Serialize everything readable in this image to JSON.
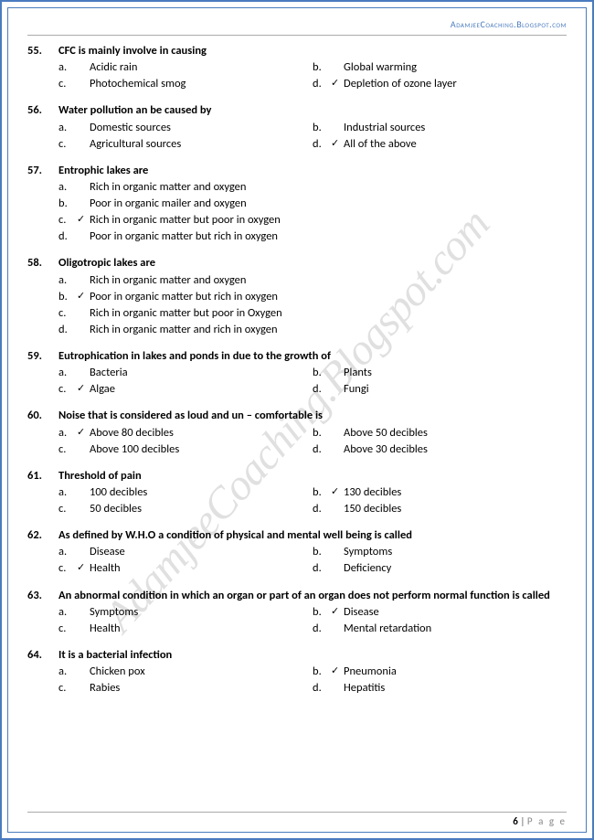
{
  "header_text": "AdamjeeCoaching.Blogspot.com",
  "watermark_text": "AdamjeeCoaching.Blogspot.com",
  "page_number": "6",
  "page_label": "P a g e",
  "checkmark": "✓",
  "questions": [
    {
      "num": "55.",
      "text": "CFC is mainly involve in causing",
      "layout": "2col",
      "options": [
        {
          "l": "a.",
          "t": "Acidic rain",
          "c": false
        },
        {
          "l": "b.",
          "t": "Global warming",
          "c": false
        },
        {
          "l": "c.",
          "t": "Photochemical smog",
          "c": false
        },
        {
          "l": "d.",
          "t": "Depletion of ozone layer",
          "c": true
        }
      ]
    },
    {
      "num": "56.",
      "text": "Water pollution an be caused by",
      "layout": "2col",
      "options": [
        {
          "l": "a.",
          "t": "Domestic sources",
          "c": false
        },
        {
          "l": "b.",
          "t": "Industrial sources",
          "c": false
        },
        {
          "l": "c.",
          "t": "Agricultural sources",
          "c": false
        },
        {
          "l": "d.",
          "t": "All of the above",
          "c": true
        }
      ]
    },
    {
      "num": "57.",
      "text": "Entrophic lakes are",
      "layout": "1col",
      "options": [
        {
          "l": "a.",
          "t": "Rich in organic matter and oxygen",
          "c": false
        },
        {
          "l": "b.",
          "t": "Poor in organic mailer and oxygen",
          "c": false
        },
        {
          "l": "c.",
          "t": "Rich in organic matter but poor in oxygen",
          "c": true
        },
        {
          "l": "d.",
          "t": "Poor in organic matter but rich in oxygen",
          "c": false
        }
      ]
    },
    {
      "num": "58.",
      "text": "Oligotropic lakes are",
      "layout": "1col",
      "options": [
        {
          "l": "a.",
          "t": "Rich in organic matter and oxygen",
          "c": false
        },
        {
          "l": "b.",
          "t": "Poor in organic matter but rich in oxygen",
          "c": true
        },
        {
          "l": "c.",
          "t": "Rich in organic matter but poor in Oxygen",
          "c": false
        },
        {
          "l": "d.",
          "t": "Rich in organic matter and rich in oxygen",
          "c": false
        }
      ]
    },
    {
      "num": "59.",
      "text": "Eutrophication in lakes and ponds in due to the growth of",
      "layout": "2col",
      "options": [
        {
          "l": "a.",
          "t": "Bacteria",
          "c": false
        },
        {
          "l": "b.",
          "t": "Plants",
          "c": false
        },
        {
          "l": "c.",
          "t": "Algae",
          "c": true
        },
        {
          "l": "d.",
          "t": "Fungi",
          "c": false
        }
      ]
    },
    {
      "num": "60.",
      "text": "Noise that is considered as loud and un – comfortable is",
      "layout": "2col",
      "options": [
        {
          "l": "a.",
          "t": "Above 80 decibles",
          "c": true
        },
        {
          "l": "b.",
          "t": "Above 50 decibles",
          "c": false
        },
        {
          "l": "c.",
          "t": "Above 100 decibles",
          "c": false
        },
        {
          "l": "d.",
          "t": "Above 30 decibles",
          "c": false
        }
      ]
    },
    {
      "num": "61.",
      "text": "Threshold of pain",
      "layout": "2col",
      "options": [
        {
          "l": "a.",
          "t": "100 decibles",
          "c": false
        },
        {
          "l": "b.",
          "t": "130 decibles",
          "c": true
        },
        {
          "l": "c.",
          "t": "50 decibles",
          "c": false
        },
        {
          "l": "d.",
          "t": "150 decibles",
          "c": false
        }
      ]
    },
    {
      "num": "62.",
      "text": "As defined by W.H.O a condition of physical and mental well being is called",
      "layout": "2col",
      "options": [
        {
          "l": "a.",
          "t": "Disease",
          "c": false
        },
        {
          "l": "b.",
          "t": "Symptoms",
          "c": false
        },
        {
          "l": "c.",
          "t": "Health",
          "c": true
        },
        {
          "l": "d.",
          "t": "Deficiency",
          "c": false
        }
      ]
    },
    {
      "num": "63.",
      "text": "An abnormal condition in which an organ or part of an organ does not perform normal function is called",
      "layout": "2col",
      "options": [
        {
          "l": "a.",
          "t": "Symptoms",
          "c": false
        },
        {
          "l": "b.",
          "t": "Disease",
          "c": true
        },
        {
          "l": "c.",
          "t": "Health",
          "c": false
        },
        {
          "l": "d.",
          "t": "Mental retardation",
          "c": false
        }
      ]
    },
    {
      "num": "64.",
      "text": "It is a bacterial infection",
      "layout": "2col",
      "options": [
        {
          "l": "a.",
          "t": "Chicken pox",
          "c": false
        },
        {
          "l": "b.",
          "t": "Pneumonia",
          "c": true
        },
        {
          "l": "c.",
          "t": "Rabies",
          "c": false
        },
        {
          "l": "d.",
          "t": "Hepatitis",
          "c": false
        }
      ]
    }
  ]
}
